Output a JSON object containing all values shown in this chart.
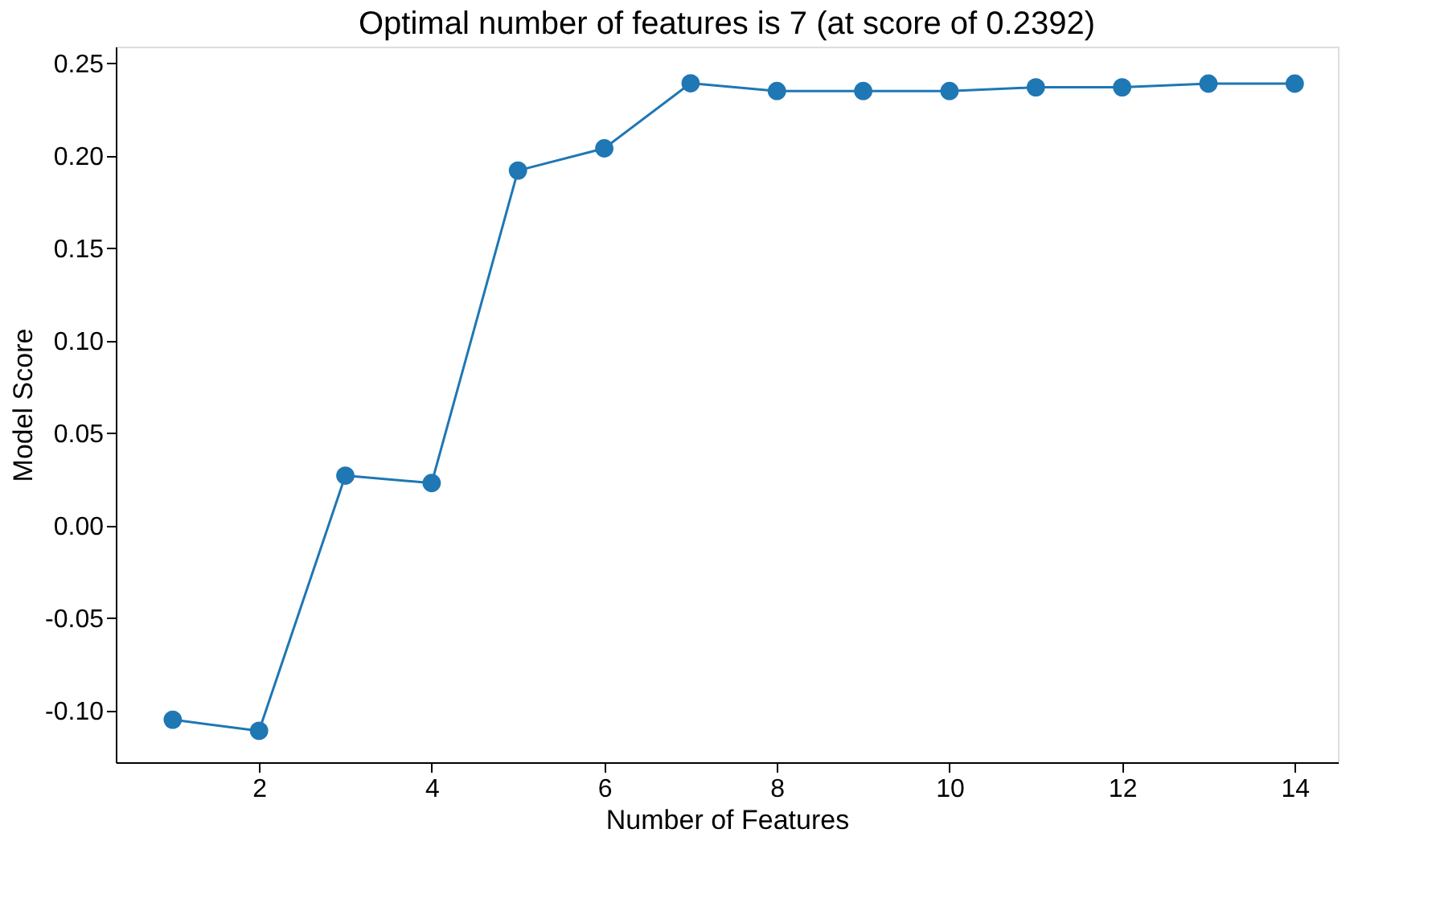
{
  "chart_data": {
    "type": "line",
    "title": "Optimal number of features is 7 (at score of 0.2392)",
    "xlabel": "Number of Features",
    "ylabel": "Model Score",
    "x": [
      1,
      2,
      3,
      4,
      5,
      6,
      7,
      8,
      9,
      10,
      11,
      12,
      13,
      14
    ],
    "series": [
      {
        "color": "#1f77b4",
        "values": [
          -0.105,
          -0.111,
          0.027,
          0.023,
          0.192,
          0.204,
          0.2392,
          0.235,
          0.235,
          0.235,
          0.237,
          0.237,
          0.239,
          0.239
        ]
      }
    ],
    "marker": "circle",
    "line_style": "solid",
    "grid": false,
    "legend": false,
    "xlim": [
      0.34,
      14.5
    ],
    "xticks": [
      2,
      4,
      6,
      8,
      10,
      12,
      14
    ],
    "ylim": [
      -0.128,
      0.259
    ],
    "yticks": [
      {
        "value": -0.1,
        "label": "-0.10"
      },
      {
        "value": -0.05,
        "label": "-0.05"
      },
      {
        "value": 0,
        "label": "0.00"
      },
      {
        "value": 0.05,
        "label": "0.05"
      },
      {
        "value": 0.1,
        "label": "0.10"
      },
      {
        "value": 0.15,
        "label": "0.15"
      },
      {
        "value": 0.2,
        "label": "0.20"
      },
      {
        "value": 0.25,
        "label": "0.25"
      }
    ]
  }
}
